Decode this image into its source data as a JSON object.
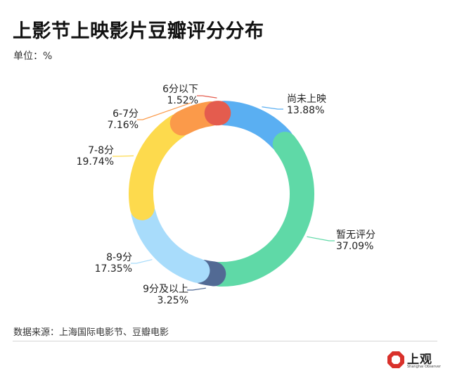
{
  "header": {
    "title": "上影节上映影片豆瓣评分分布",
    "unit": "单位：%"
  },
  "chart_data": {
    "type": "pie",
    "variant": "donut",
    "title": "上影节上映影片豆瓣评分分布",
    "unit": "%",
    "slices": [
      {
        "label": "尚未上映",
        "value": 13.88,
        "value_text": "13.88%",
        "color": "#5aaff2"
      },
      {
        "label": "暂无评分",
        "value": 37.09,
        "value_text": "37.09%",
        "color": "#5fd9a7"
      },
      {
        "label": "9分及以上",
        "value": 3.25,
        "value_text": "3.25%",
        "color": "#526a94"
      },
      {
        "label": "8-9分",
        "value": 17.35,
        "value_text": "17.35%",
        "color": "#a8dcfb"
      },
      {
        "label": "7-8分",
        "value": 19.74,
        "value_text": "19.74%",
        "color": "#fdda4d"
      },
      {
        "label": "6-7分",
        "value": 7.16,
        "value_text": "7.16%",
        "color": "#fb9a4a"
      },
      {
        "label": "6分以下",
        "value": 1.52,
        "value_text": "1.52%",
        "color": "#e45c4e"
      }
    ]
  },
  "footer": {
    "source": "数据来源：上海国际电影节、豆瓣电影",
    "logo_text": "上观",
    "logo_sub": "Shanghai Observer"
  }
}
